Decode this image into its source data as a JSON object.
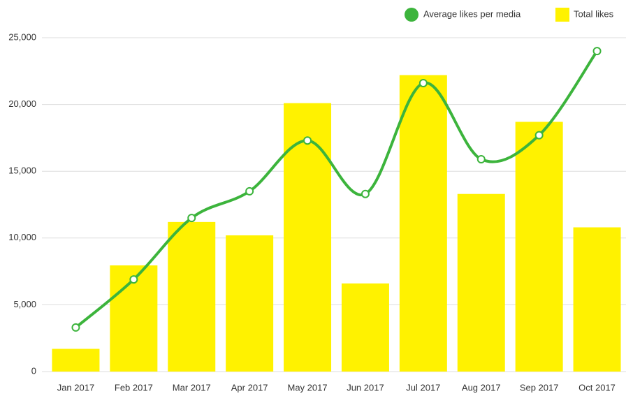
{
  "chart_data": {
    "type": "bar",
    "categories": [
      "Jan 2017",
      "Feb 2017",
      "Mar 2017",
      "Apr 2017",
      "May 2017",
      "Jun 2017",
      "Jul 2017",
      "Aug 2017",
      "Sep 2017",
      "Oct 2017"
    ],
    "series": [
      {
        "name": "Average likes per media",
        "type": "line",
        "color": "#3cb43c",
        "values": [
          3300,
          6900,
          11500,
          13500,
          17300,
          13300,
          21600,
          15900,
          17700,
          24000
        ]
      },
      {
        "name": "Total likes",
        "type": "bar",
        "color": "#fff200",
        "values": [
          1700,
          7950,
          11200,
          10200,
          20100,
          6600,
          22200,
          13300,
          18700,
          10800
        ]
      }
    ],
    "ylim": [
      0,
      25000
    ],
    "yticks": [
      0,
      {
        "value": 5000,
        "label": "5,000"
      },
      {
        "value": 10000,
        "label": "10,000"
      },
      {
        "value": 15000,
        "label": "15,000"
      },
      {
        "value": 20000,
        "label": "20,000"
      },
      {
        "value": 25000,
        "label": "25,000"
      }
    ],
    "grid": true,
    "legend": "top-right"
  }
}
